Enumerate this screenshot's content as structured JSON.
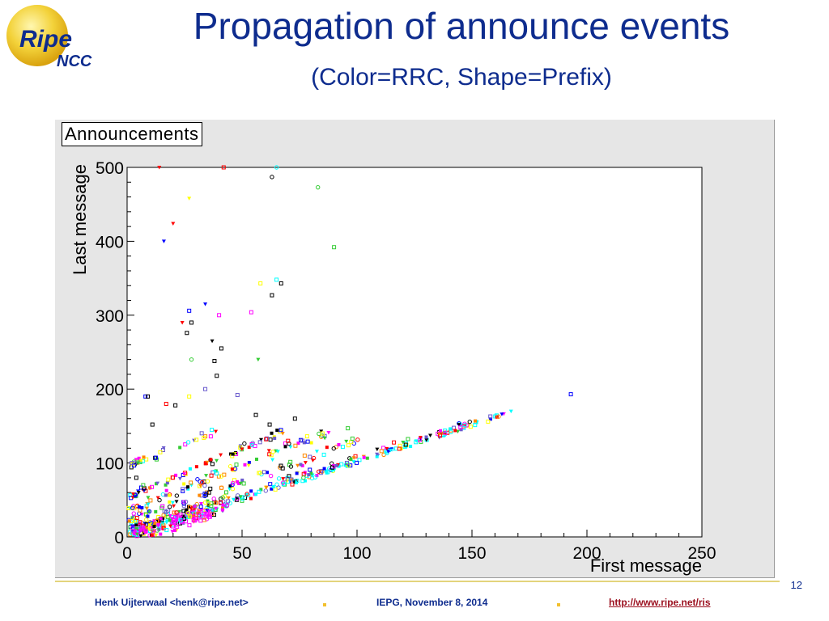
{
  "slide": {
    "title": "Propagation of announce events",
    "subtitle": "(Color=RRC, Shape=Prefix)",
    "logo": {
      "word1": "Ripe",
      "word2": "NCC"
    },
    "slide_number": "12"
  },
  "footer": {
    "author": "Henk Uijterwaal <henk@ripe.net>",
    "event": "IEPG, November 8, 2014",
    "link": "http://www.ripe.net/ris"
  },
  "colors": {
    "title": "#0e2c8e",
    "canvas": "#e6e6e6",
    "rrc": [
      "#000000",
      "#ff00ff",
      "#00ffff",
      "#0000ff",
      "#6a5acd",
      "#33cc33",
      "#ff0000",
      "#ffff00",
      "#ff8800"
    ]
  },
  "chart_data": {
    "type": "scatter",
    "title": "Announcements",
    "xlabel": "First message",
    "ylabel": "Last message",
    "xlim": [
      0,
      250
    ],
    "ylim": [
      0,
      500
    ],
    "xticks": [
      0,
      50,
      100,
      150,
      200,
      250
    ],
    "yticks": [
      0,
      100,
      200,
      300,
      400,
      500
    ],
    "legend": "none",
    "grid": false,
    "bands": [
      {
        "from_x": 0,
        "from_y": 2,
        "to_x": 168,
        "to_y": 170,
        "count": 190,
        "spread": 3
      },
      {
        "from_x": 0,
        "from_y": 10,
        "to_x": 150,
        "to_y": 155,
        "count": 130,
        "spread": 4
      },
      {
        "from_x": 0,
        "from_y": 20,
        "to_x": 100,
        "to_y": 130,
        "count": 90,
        "spread": 5
      },
      {
        "from_x": 0,
        "from_y": 35,
        "to_x": 90,
        "to_y": 145,
        "count": 90,
        "spread": 5
      },
      {
        "from_x": 0,
        "from_y": 55,
        "to_x": 70,
        "to_y": 145,
        "count": 70,
        "spread": 4
      },
      {
        "from_x": 0,
        "from_y": 95,
        "to_x": 40,
        "to_y": 145,
        "count": 35,
        "spread": 4
      },
      {
        "from_x": 0,
        "from_y": 0,
        "to_x": 40,
        "to_y": 40,
        "count": 160,
        "spread": 10
      }
    ],
    "points": [
      {
        "x": 14,
        "y": 500,
        "shape": "triangle",
        "color": "#ff0000"
      },
      {
        "x": 42,
        "y": 500,
        "shape": "square",
        "color": "#ff0000"
      },
      {
        "x": 65,
        "y": 500,
        "shape": "circle",
        "color": "#00ffff"
      },
      {
        "x": 63,
        "y": 487,
        "shape": "circle",
        "color": "#000000"
      },
      {
        "x": 83,
        "y": 473,
        "shape": "circle",
        "color": "#33cc33"
      },
      {
        "x": 27,
        "y": 458,
        "shape": "triangle",
        "color": "#ffff00"
      },
      {
        "x": 20,
        "y": 424,
        "shape": "triangle",
        "color": "#ff0000"
      },
      {
        "x": 16,
        "y": 400,
        "shape": "triangle",
        "color": "#0000ff"
      },
      {
        "x": 90,
        "y": 392,
        "shape": "square",
        "color": "#33cc33"
      },
      {
        "x": 58,
        "y": 343,
        "shape": "square",
        "color": "#ffff00"
      },
      {
        "x": 67,
        "y": 343,
        "shape": "square",
        "color": "#000000"
      },
      {
        "x": 65,
        "y": 348,
        "shape": "square",
        "color": "#00ffff"
      },
      {
        "x": 63,
        "y": 327,
        "shape": "square",
        "color": "#000000"
      },
      {
        "x": 34,
        "y": 315,
        "shape": "triangle",
        "color": "#0000ff"
      },
      {
        "x": 27,
        "y": 306,
        "shape": "square",
        "color": "#0000ff"
      },
      {
        "x": 40,
        "y": 300,
        "shape": "square",
        "color": "#ff00ff"
      },
      {
        "x": 54,
        "y": 304,
        "shape": "square",
        "color": "#ff00ff"
      },
      {
        "x": 24,
        "y": 290,
        "shape": "triangle",
        "color": "#ff0000"
      },
      {
        "x": 28,
        "y": 290,
        "shape": "square",
        "color": "#000000"
      },
      {
        "x": 26,
        "y": 276,
        "shape": "square",
        "color": "#000000"
      },
      {
        "x": 37,
        "y": 265,
        "shape": "triangle",
        "color": "#000000"
      },
      {
        "x": 41,
        "y": 255,
        "shape": "square",
        "color": "#000000"
      },
      {
        "x": 28,
        "y": 240,
        "shape": "circle",
        "color": "#33cc33"
      },
      {
        "x": 57,
        "y": 240,
        "shape": "triangle",
        "color": "#33cc33"
      },
      {
        "x": 38,
        "y": 238,
        "shape": "square",
        "color": "#000000"
      },
      {
        "x": 39,
        "y": 218,
        "shape": "square",
        "color": "#000000"
      },
      {
        "x": 34,
        "y": 200,
        "shape": "square",
        "color": "#6a5acd"
      },
      {
        "x": 8,
        "y": 190,
        "shape": "square",
        "color": "#0000ff"
      },
      {
        "x": 9,
        "y": 190,
        "shape": "square",
        "color": "#000000"
      },
      {
        "x": 27,
        "y": 190,
        "shape": "square",
        "color": "#ffff00"
      },
      {
        "x": 48,
        "y": 192,
        "shape": "square",
        "color": "#6a5acd"
      },
      {
        "x": 17,
        "y": 180,
        "shape": "square",
        "color": "#ff0000"
      },
      {
        "x": 21,
        "y": 178,
        "shape": "square",
        "color": "#000000"
      },
      {
        "x": 11,
        "y": 152,
        "shape": "square",
        "color": "#000000"
      },
      {
        "x": 193,
        "y": 193,
        "shape": "square",
        "color": "#0000ff"
      },
      {
        "x": 167,
        "y": 170,
        "shape": "triangle",
        "color": "#00ffff"
      },
      {
        "x": 163,
        "y": 166,
        "shape": "triangle",
        "color": "#0000ff"
      },
      {
        "x": 158,
        "y": 163,
        "shape": "square",
        "color": "#6a5acd"
      },
      {
        "x": 145,
        "y": 148,
        "shape": "square",
        "color": "#ff00ff"
      },
      {
        "x": 120,
        "y": 128,
        "shape": "triangle",
        "color": "#33cc33"
      },
      {
        "x": 98,
        "y": 133,
        "shape": "square",
        "color": "#33cc33"
      },
      {
        "x": 96,
        "y": 147,
        "shape": "square",
        "color": "#33cc33"
      },
      {
        "x": 85,
        "y": 140,
        "shape": "square",
        "color": "#ffff00"
      },
      {
        "x": 70,
        "y": 130,
        "shape": "square",
        "color": "#ff0000"
      },
      {
        "x": 62,
        "y": 152,
        "shape": "square",
        "color": "#000000"
      },
      {
        "x": 73,
        "y": 160,
        "shape": "square",
        "color": "#000000"
      },
      {
        "x": 56,
        "y": 165,
        "shape": "square",
        "color": "#000000"
      },
      {
        "x": 5,
        "y": 60,
        "shape": "triangle",
        "color": "#000000"
      },
      {
        "x": 2,
        "y": 100,
        "shape": "square",
        "color": "#6a5acd"
      },
      {
        "x": 4,
        "y": 80,
        "shape": "square",
        "color": "#000000"
      },
      {
        "x": 7,
        "y": 70,
        "shape": "square",
        "color": "#33cc33"
      }
    ]
  }
}
